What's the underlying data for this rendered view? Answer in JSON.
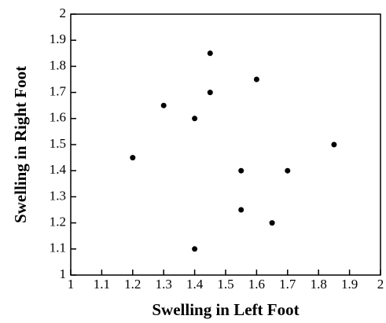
{
  "chart_data": {
    "type": "scatter",
    "xlabel": "Swelling in Left Foot",
    "ylabel": "Swelling in Right Foot",
    "x": [
      1.2,
      1.3,
      1.4,
      1.45,
      1.45,
      1.6,
      1.55,
      1.7,
      1.85,
      1.55,
      1.65,
      1.4
    ],
    "values": [
      1.45,
      1.65,
      1.6,
      1.85,
      1.7,
      1.75,
      1.4,
      1.4,
      1.5,
      1.25,
      1.2,
      1.1
    ],
    "color": "#000000",
    "xlim": [
      1,
      2
    ],
    "xticks": [
      1,
      1.1,
      1.2,
      1.3,
      1.4,
      1.5,
      1.6,
      1.7,
      1.8,
      1.9,
      2
    ],
    "ylim": [
      1,
      2
    ],
    "yticks": [
      1,
      1.1,
      1.2,
      1.3,
      1.4,
      1.5,
      1.6,
      1.7,
      1.8,
      1.9,
      2
    ],
    "grid": false
  }
}
